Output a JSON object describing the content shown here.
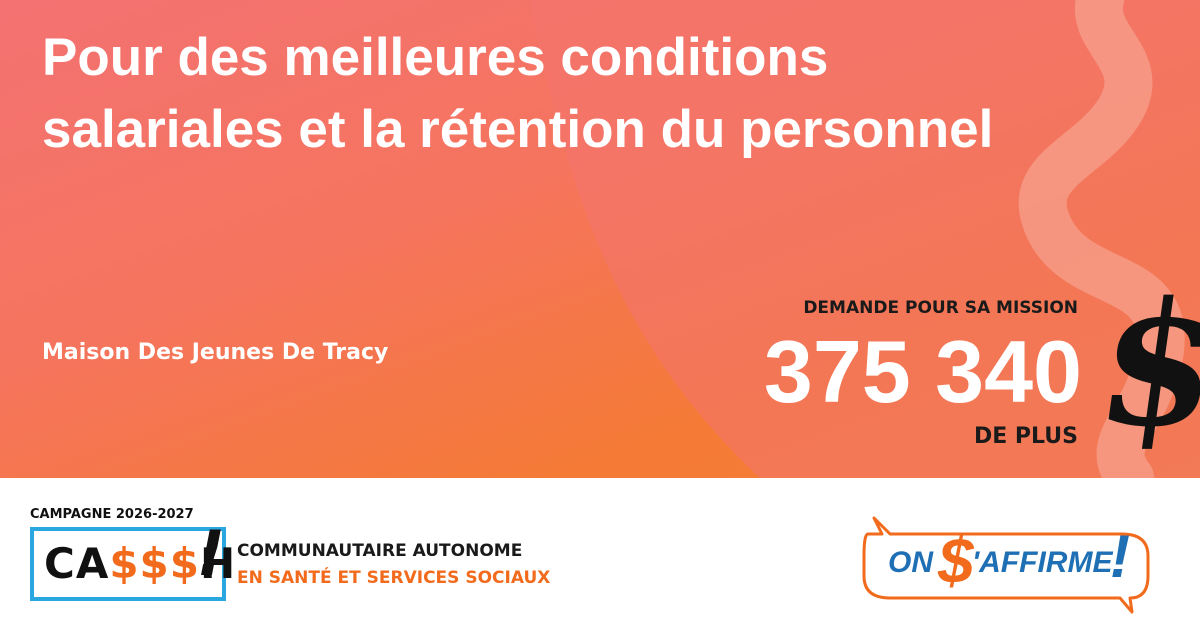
{
  "header": {
    "title": "Pour des meilleures conditions salariales et la rétention du personnel",
    "organization": "Maison Des Jeunes De Tracy"
  },
  "amount": {
    "label": "DEMANDE POUR SA MISSION",
    "value": "375 340",
    "currency": "$",
    "suffix": "DE PLUS"
  },
  "footer": {
    "campaign": "CAMPAGNE 2026-2027",
    "logo": {
      "part1": "CA",
      "part2": "$$$",
      "part3": "H",
      "part4": "!"
    },
    "line1": "COMMUNAUTAIRE AUTONOME",
    "line2": "EN SANTÉ ET SERVICES SOCIAUX",
    "badge": {
      "part1": "ON",
      "part2": "$",
      "part3": "'AFFIRME",
      "part4": "!"
    }
  }
}
